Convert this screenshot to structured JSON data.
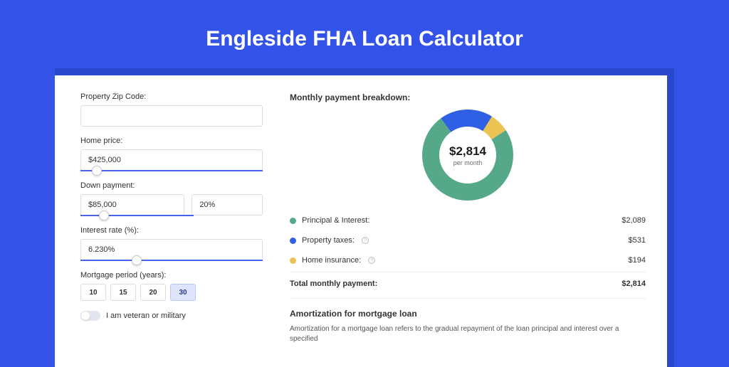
{
  "page_title": "Engleside FHA Loan Calculator",
  "background_color": "#3353e8",
  "shadow_color": "#2947cc",
  "card_bg": "#ffffff",
  "form": {
    "zip": {
      "label": "Property Zip Code:",
      "value": ""
    },
    "home_price": {
      "label": "Home price:",
      "value": "$425,000",
      "slider_pct": 9
    },
    "down_payment": {
      "label": "Down payment:",
      "amount": "$85,000",
      "percent": "20%",
      "slider_pct": 21
    },
    "interest": {
      "label": "Interest rate (%):",
      "value": "6.230%",
      "slider_pct": 31
    },
    "mortgage_period": {
      "label": "Mortgage period (years):",
      "options": [
        "10",
        "15",
        "20",
        "30"
      ],
      "selected": "30"
    },
    "veteran": {
      "label": "I am veteran or military",
      "on": false
    }
  },
  "breakdown": {
    "title": "Monthly payment breakdown:",
    "center_amount": "$2,814",
    "center_sub": "per month",
    "segments": {
      "principal": {
        "label": "Principal & Interest:",
        "value": "$2,089",
        "color": "#56a988",
        "pct": 74.2
      },
      "taxes": {
        "label": "Property taxes:",
        "value": "$531",
        "color": "#2f5fe4",
        "pct": 18.9,
        "info": true
      },
      "insurance": {
        "label": "Home insurance:",
        "value": "$194",
        "color": "#ecc353",
        "pct": 6.9,
        "info": true
      }
    },
    "total_label": "Total monthly payment:",
    "total_value": "$2,814"
  },
  "amortization": {
    "title": "Amortization for mortgage loan",
    "text": "Amortization for a mortgage loan refers to the gradual repayment of the loan principal and interest over a specified"
  },
  "chart_style": {
    "outer_radius": 64,
    "inner_radius": 40,
    "background": "#ffffff",
    "start_angle_deg": -58
  }
}
